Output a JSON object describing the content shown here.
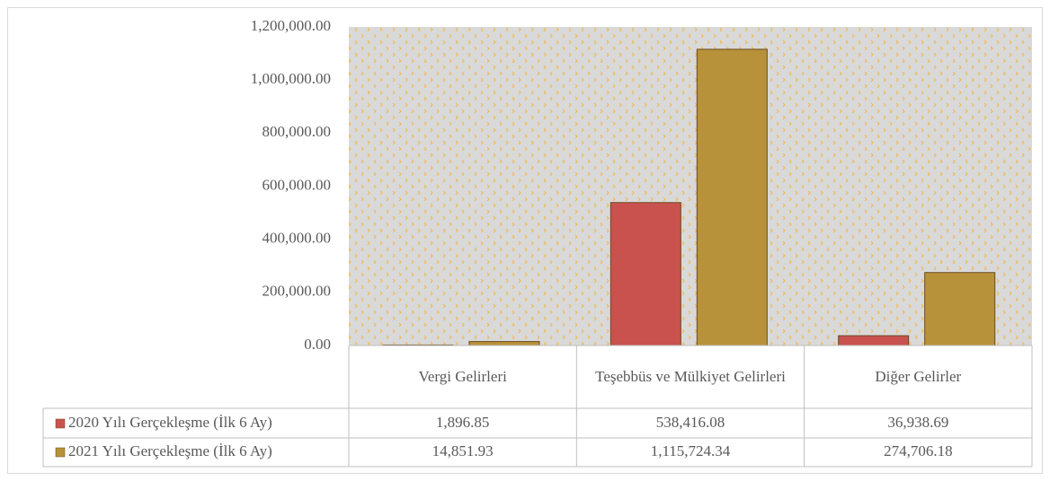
{
  "chart_data": {
    "type": "bar",
    "categories": [
      "Vergi Gelirleri",
      "Teşebbüs ve Mülkiyet Gelirleri",
      "Diğer Gelirler"
    ],
    "series": [
      {
        "name": "2020 Yılı Gerçekleşme (İlk 6 Ay)",
        "color": "#c9524f",
        "values": [
          1896.85,
          538416.08,
          36938.69
        ],
        "value_labels": [
          "1,896.85",
          "538,416.08",
          "36,938.69"
        ]
      },
      {
        "name": "2021 Yılı Gerçekleşme (İlk 6 Ay)",
        "color": "#b8923a",
        "values": [
          14851.93,
          1115724.34,
          274706.18
        ],
        "value_labels": [
          "14,851.93",
          "1,115,724.34",
          "274,706.18"
        ]
      }
    ],
    "ylim": [
      0,
      1200000
    ],
    "yticks": [
      {
        "value": 0,
        "label": "0.00"
      },
      {
        "value": 200000,
        "label": "200,000.00"
      },
      {
        "value": 400000,
        "label": "400,000.00"
      },
      {
        "value": 600000,
        "label": "600,000.00"
      },
      {
        "value": 800000,
        "label": "800,000.00"
      },
      {
        "value": 1000000,
        "label": "1,000,000.00"
      },
      {
        "value": 1200000,
        "label": "1,200,000.00"
      }
    ],
    "grid": false,
    "plot_background": "#d9d9d9"
  }
}
